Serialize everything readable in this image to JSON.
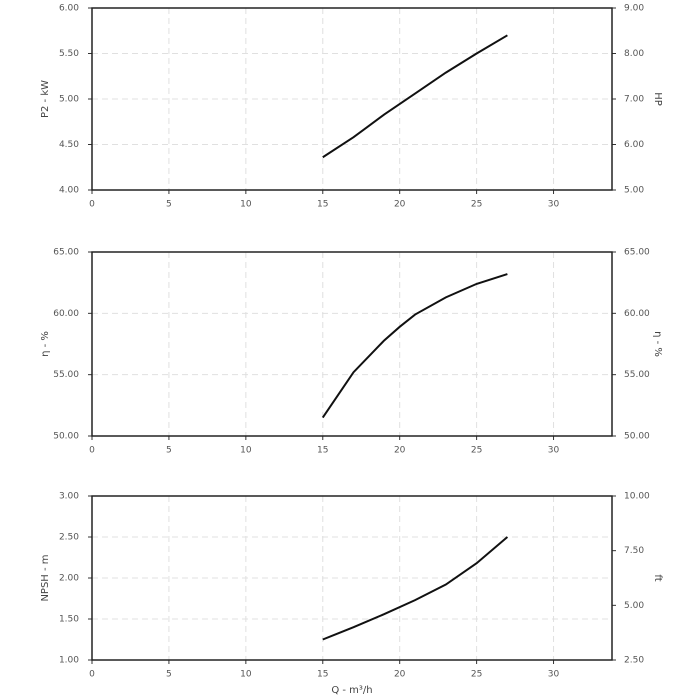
{
  "chart_data": [
    {
      "type": "line",
      "y_label": "P2 - kW",
      "y2_label": "HP",
      "x": [
        15,
        17,
        19,
        21,
        23,
        25,
        27
      ],
      "values": [
        4.36,
        4.58,
        4.83,
        5.06,
        5.29,
        5.5,
        5.7
      ],
      "color": "#111111",
      "xlim": [
        0,
        33.8
      ],
      "xticks": [
        0,
        5,
        10,
        15,
        20,
        25,
        30
      ],
      "ylim": [
        4,
        6
      ],
      "yticks": [
        {
          "value": 4,
          "label": "4.00"
        },
        {
          "value": 4.5,
          "label": "4.50"
        },
        {
          "value": 5,
          "label": "5.00"
        },
        {
          "value": 5.5,
          "label": "5.50"
        },
        {
          "value": 6,
          "label": "6.00"
        }
      ],
      "y2lim": [
        5,
        9
      ],
      "y2ticks": [
        {
          "value": 5,
          "label": "5.00"
        },
        {
          "value": 6,
          "label": "6.00"
        },
        {
          "value": 7,
          "label": "7.00"
        },
        {
          "value": 8,
          "label": "8.00"
        },
        {
          "value": 9,
          "label": "9.00"
        }
      ],
      "grid": true
    },
    {
      "type": "line",
      "y_label": "η - %",
      "y2_label": "η - %",
      "x": [
        15,
        17,
        19,
        20,
        21,
        23,
        25,
        27
      ],
      "values": [
        51.5,
        55.2,
        57.8,
        58.9,
        59.9,
        61.3,
        62.4,
        63.2
      ],
      "color": "#111111",
      "xlim": [
        0,
        33.8
      ],
      "xticks": [
        0,
        5,
        10,
        15,
        20,
        25,
        30
      ],
      "ylim": [
        50,
        65
      ],
      "yticks": [
        {
          "value": 50,
          "label": "50.00"
        },
        {
          "value": 55,
          "label": "55.00"
        },
        {
          "value": 60,
          "label": "60.00"
        },
        {
          "value": 65,
          "label": "65.00"
        }
      ],
      "y2lim": [
        50,
        65
      ],
      "y2ticks": [
        {
          "value": 50,
          "label": "50.00"
        },
        {
          "value": 55,
          "label": "55.00"
        },
        {
          "value": 60,
          "label": "60.00"
        },
        {
          "value": 65,
          "label": "65.00"
        }
      ],
      "grid": true
    },
    {
      "type": "line",
      "y_label": "NPSH - m",
      "y2_label": "ft",
      "x_label": "Q - m³/h",
      "x": [
        15,
        17,
        19,
        21,
        23,
        25,
        27
      ],
      "values": [
        1.25,
        1.4,
        1.56,
        1.73,
        1.92,
        2.18,
        2.5
      ],
      "color": "#111111",
      "xlim": [
        0,
        33.8
      ],
      "xticks": [
        0,
        5,
        10,
        15,
        20,
        25,
        30
      ],
      "ylim": [
        1,
        3
      ],
      "yticks": [
        {
          "value": 1,
          "label": "1.00"
        },
        {
          "value": 1.5,
          "label": "1.50"
        },
        {
          "value": 2,
          "label": "2.00"
        },
        {
          "value": 2.5,
          "label": "2.50"
        },
        {
          "value": 3,
          "label": "3.00"
        }
      ],
      "y2lim": [
        2.5,
        10
      ],
      "y2ticks": [
        {
          "value": 2.5,
          "label": "2.50"
        },
        {
          "value": 5,
          "label": "5.00"
        },
        {
          "value": 7.5,
          "label": "7.50"
        },
        {
          "value": 10,
          "label": "10.00"
        }
      ],
      "grid": true
    }
  ]
}
